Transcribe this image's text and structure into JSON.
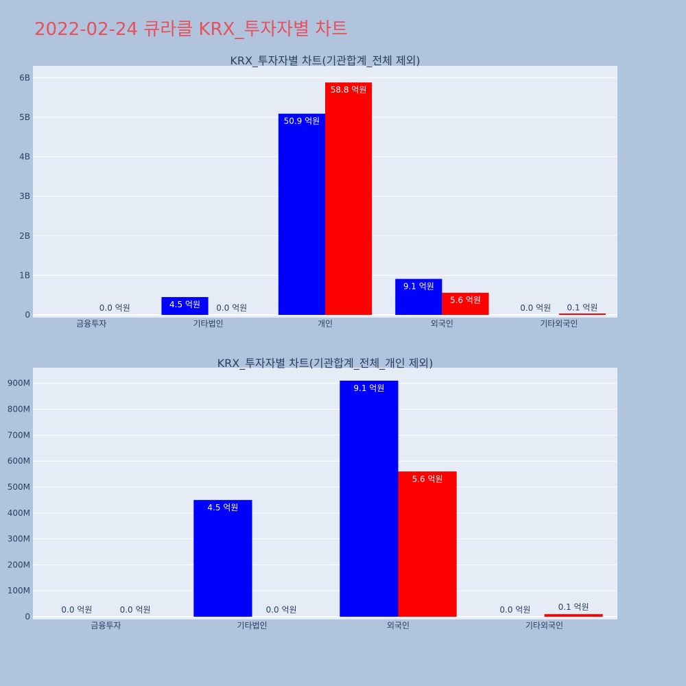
{
  "page": {
    "title": "2022-02-24 큐라클 KRX_투자자별 차트"
  },
  "colors": {
    "background": "#b0c4de",
    "plot_bg": "#e5ecf6",
    "title": "#e8505b",
    "series_a": "#0000ff",
    "series_b": "#ff0000",
    "text": "#2a3f5f"
  },
  "chart_data": [
    {
      "type": "bar",
      "title": "KRX_투자자별 차트(기관합계_전체 제외)",
      "categories": [
        "금융투자",
        "기타법인",
        "개인",
        "외국인",
        "기타외국인"
      ],
      "series": [
        {
          "color": "#0000ff",
          "values": [
            0,
            450000000,
            5090000000,
            910000000,
            0
          ],
          "labels": [
            "",
            "4.5 억원",
            "50.9 억원",
            "9.1 억원",
            "0.0 억원"
          ]
        },
        {
          "color": "#ff0000",
          "values": [
            0,
            0,
            5880000000,
            560000000,
            10000000
          ],
          "labels": [
            "0.0 억원",
            "0.0 억원",
            "58.8 억원",
            "5.6 억원",
            "0.1 억원"
          ]
        }
      ],
      "yticks": [
        0,
        1000000000,
        2000000000,
        3000000000,
        4000000000,
        5000000000,
        6000000000
      ],
      "yticklabels": [
        "0",
        "1B",
        "2B",
        "3B",
        "4B",
        "5B",
        "6B"
      ],
      "ylim": [
        0,
        6300000000
      ],
      "grid": true
    },
    {
      "type": "bar",
      "title": "KRX_투자자별 차트(기관합계_전체_개인 제외)",
      "categories": [
        "금융투자",
        "기타법인",
        "외국인",
        "기타외국인"
      ],
      "series": [
        {
          "color": "#0000ff",
          "values": [
            0,
            450000000,
            910000000,
            0
          ],
          "labels": [
            "0.0 억원",
            "4.5 억원",
            "9.1 억원",
            "0.0 억원"
          ]
        },
        {
          "color": "#ff0000",
          "values": [
            0,
            0,
            560000000,
            10000000
          ],
          "labels": [
            "0.0 억원",
            "0.0 억원",
            "5.6 억원",
            "0.1 억원"
          ]
        }
      ],
      "yticks": [
        0,
        100000000,
        200000000,
        300000000,
        400000000,
        500000000,
        600000000,
        700000000,
        800000000,
        900000000
      ],
      "yticklabels": [
        "0",
        "100M",
        "200M",
        "300M",
        "400M",
        "500M",
        "600M",
        "700M",
        "800M",
        "900M"
      ],
      "ylim": [
        0,
        960000000
      ],
      "grid": true
    }
  ]
}
